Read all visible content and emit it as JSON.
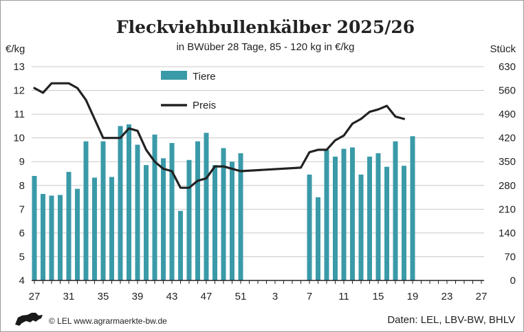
{
  "chart_data": {
    "type": "bar",
    "title": "Fleckviehbullenkälber 2025/26",
    "subtitle": "in BWüber 28 Tage, 85 - 120 kg in €/kg",
    "y_left_unit": "€/kg",
    "y_right_unit": "Stück",
    "ylim_left": [
      4,
      13
    ],
    "ylim_right": [
      0,
      630
    ],
    "y_left_ticks": [
      "4",
      "5",
      "6",
      "7",
      "8",
      "9",
      "10",
      "11",
      "12",
      "13"
    ],
    "y_right_ticks": [
      "0",
      "70",
      "140",
      "210",
      "280",
      "350",
      "420",
      "490",
      "560",
      "630"
    ],
    "x_tick_labels": [
      "27",
      "31",
      "35",
      "39",
      "43",
      "47",
      "51",
      "3",
      "7",
      "11",
      "15",
      "19",
      "23",
      "27"
    ],
    "x_positions": [
      "27",
      "28",
      "29",
      "30",
      "31",
      "32",
      "33",
      "34",
      "35",
      "36",
      "37",
      "38",
      "39",
      "40",
      "41",
      "42",
      "43",
      "44",
      "45",
      "46",
      "47",
      "48",
      "49",
      "50",
      "51",
      "52",
      "1",
      "2",
      "3",
      "4",
      "5",
      "6",
      "7",
      "8",
      "9",
      "10",
      "11",
      "12",
      "13",
      "14",
      "15",
      "16",
      "17",
      "18",
      "19",
      "20",
      "21",
      "22",
      "23",
      "24",
      "25",
      "26",
      "27"
    ],
    "grid": "horizontal",
    "legend_position": "top-center",
    "series": [
      {
        "name": "Tiere",
        "type": "bar",
        "axis": "right",
        "color": "#3a9aa8",
        "values": [
          308,
          255,
          250,
          252,
          320,
          270,
          410,
          303,
          410,
          305,
          455,
          460,
          400,
          340,
          430,
          360,
          405,
          205,
          355,
          410,
          435,
          340,
          390,
          350,
          375,
          null,
          null,
          null,
          null,
          null,
          null,
          null,
          312,
          245,
          385,
          365,
          388,
          392,
          312,
          365,
          375,
          335,
          410,
          338,
          425,
          null,
          null,
          null,
          null,
          null,
          null,
          null,
          null
        ]
      },
      {
        "name": "Preis",
        "type": "line",
        "axis": "left",
        "color": "#222222",
        "values": [
          12.1,
          11.9,
          12.3,
          12.3,
          12.3,
          12.1,
          11.6,
          10.8,
          10.0,
          10.0,
          10.0,
          10.4,
          10.3,
          9.5,
          9.0,
          8.7,
          8.6,
          7.9,
          7.9,
          8.2,
          8.3,
          8.8,
          8.8,
          8.7,
          8.6,
          null,
          null,
          null,
          null,
          null,
          null,
          8.75,
          9.4,
          9.5,
          9.5,
          9.9,
          10.1,
          10.6,
          10.8,
          11.1,
          11.2,
          11.35,
          10.9,
          10.8,
          null,
          null,
          null,
          null,
          null,
          null,
          null,
          null,
          null
        ]
      }
    ]
  },
  "footer": {
    "logo_text": "© LEL www.agrarmaerkte-bw.de",
    "source": "Daten: LEL, LBV-BW, BHLV"
  }
}
